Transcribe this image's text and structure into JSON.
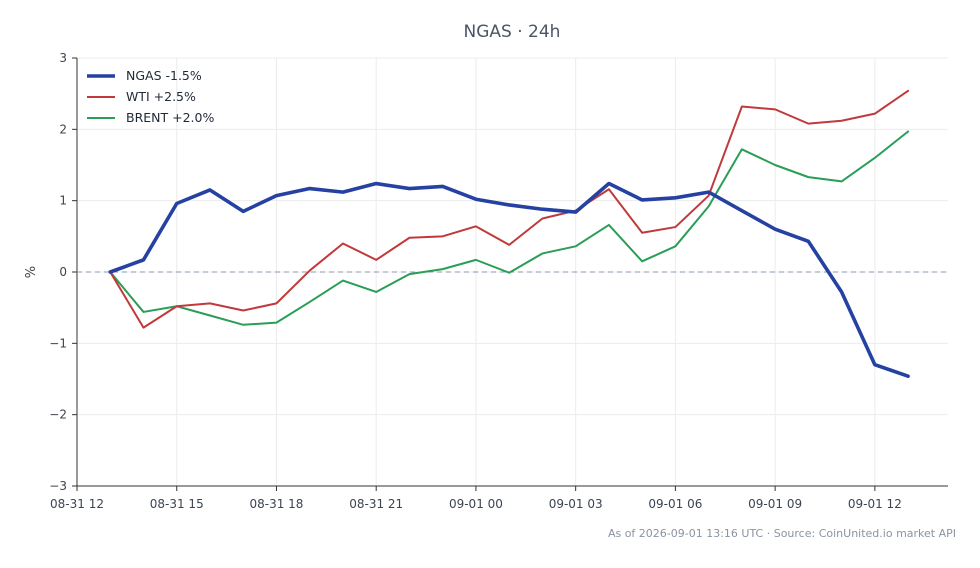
{
  "chart_data": {
    "type": "line",
    "title": "NGAS · 24h",
    "xlabel": "",
    "ylabel": "%",
    "ylim": [
      -3,
      3
    ],
    "xlim": [
      12.0,
      38.2
    ],
    "y_ticks": [
      3,
      2,
      1,
      0,
      -1,
      -2,
      -3
    ],
    "y_tick_labels": [
      "3",
      "2",
      "1",
      "0",
      "−1",
      "−2",
      "−3"
    ],
    "x_ticks": [
      12,
      15,
      18,
      21,
      24,
      27,
      30,
      33,
      36
    ],
    "x_tick_labels": [
      "08-31 12",
      "08-31 15",
      "08-31 18",
      "08-31 21",
      "09-01 00",
      "09-01 03",
      "09-01 06",
      "09-01 09",
      "09-01 12"
    ],
    "x": [
      13,
      14,
      15,
      16,
      17,
      18,
      19,
      20,
      21,
      22,
      23,
      24,
      25,
      26,
      27,
      28,
      29,
      30,
      31,
      32,
      33,
      34,
      35,
      36,
      37
    ],
    "reference_line": 0,
    "grid": true,
    "legend_position": "top-left",
    "series": [
      {
        "name": "NGAS -1.5%",
        "color": "#2541a1",
        "values": [
          0,
          0.17,
          0.96,
          1.15,
          0.85,
          1.07,
          1.17,
          1.12,
          1.24,
          1.17,
          1.2,
          1.02,
          0.94,
          0.88,
          0.84,
          1.24,
          1.01,
          1.04,
          1.12,
          0.86,
          0.6,
          0.43,
          -0.28,
          -1.3,
          -1.46
        ]
      },
      {
        "name": "WTI +2.5%",
        "color": "#c0393b",
        "values": [
          0,
          -0.78,
          -0.48,
          -0.44,
          -0.54,
          -0.44,
          0.02,
          0.4,
          0.17,
          0.48,
          0.5,
          0.64,
          0.38,
          0.75,
          0.86,
          1.16,
          0.55,
          0.63,
          1.07,
          2.32,
          2.28,
          2.08,
          2.12,
          2.22,
          2.54
        ]
      },
      {
        "name": "BRENT +2.0%",
        "color": "#2a9d57",
        "values": [
          0,
          -0.56,
          -0.48,
          -0.61,
          -0.74,
          -0.71,
          -0.42,
          -0.12,
          -0.28,
          -0.03,
          0.04,
          0.17,
          -0.01,
          0.26,
          0.36,
          0.66,
          0.15,
          0.36,
          0.92,
          1.72,
          1.5,
          1.33,
          1.27,
          1.6,
          1.97
        ]
      }
    ]
  },
  "footer": {
    "text": "As of 2026-09-01 13:16 UTC · Source: CoinUnited.io market API"
  }
}
